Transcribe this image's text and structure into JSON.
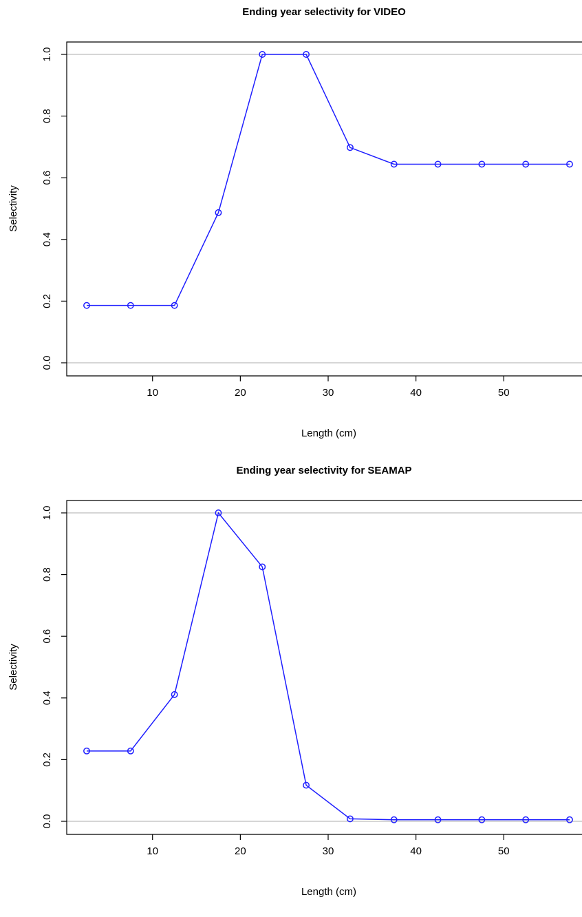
{
  "colors": {
    "series": "#1f1fff",
    "refline": "#bebebe",
    "axis": "#000000"
  },
  "chart_data": [
    {
      "type": "line",
      "title": "Ending year selectivity for VIDEO",
      "xlabel": "Length (cm)",
      "ylabel": "Selectivity",
      "xlim": [
        2.5,
        57.5
      ],
      "ylim": [
        0,
        1
      ],
      "xticks": [
        10,
        20,
        30,
        40,
        50
      ],
      "yticks": [
        0.0,
        0.2,
        0.4,
        0.6,
        0.8,
        1.0
      ],
      "ytick_labels": [
        "0.0",
        "0.2",
        "0.4",
        "0.6",
        "0.8",
        "1.0"
      ],
      "hlines": [
        0,
        1
      ],
      "grid": false,
      "series": [
        {
          "x": [
            2.5,
            7.5,
            12.5,
            17.5,
            22.5,
            27.5,
            32.5,
            37.5,
            42.5,
            47.5,
            52.5,
            57.5
          ],
          "values": [
            0.186,
            0.186,
            0.186,
            0.487,
            1.0,
            1.0,
            0.698,
            0.644,
            0.644,
            0.644,
            0.644,
            0.644
          ]
        }
      ]
    },
    {
      "type": "line",
      "title": "Ending year selectivity for SEAMAP",
      "xlabel": "Length (cm)",
      "ylabel": "Selectivity",
      "xlim": [
        2.5,
        57.5
      ],
      "ylim": [
        0,
        1
      ],
      "xticks": [
        10,
        20,
        30,
        40,
        50
      ],
      "yticks": [
        0.0,
        0.2,
        0.4,
        0.6,
        0.8,
        1.0
      ],
      "ytick_labels": [
        "0.0",
        "0.2",
        "0.4",
        "0.6",
        "0.8",
        "1.0"
      ],
      "hlines": [
        0,
        1
      ],
      "grid": false,
      "series": [
        {
          "x": [
            2.5,
            7.5,
            12.5,
            17.5,
            22.5,
            27.5,
            32.5,
            37.5,
            42.5,
            47.5,
            52.5,
            57.5
          ],
          "values": [
            0.228,
            0.228,
            0.411,
            1.0,
            0.825,
            0.117,
            0.008,
            0.005,
            0.005,
            0.005,
            0.005,
            0.005
          ]
        }
      ]
    }
  ]
}
